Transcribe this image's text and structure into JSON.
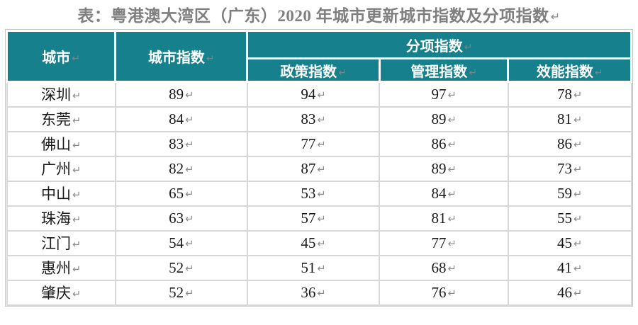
{
  "title": {
    "text": "表：粤港澳大湾区（广东）2020 年城市更新城市指数及分项指数"
  },
  "marks": {
    "crlf": "↵"
  },
  "colors": {
    "header_bg": "#16808C",
    "header_text": "#FFFFFF",
    "grid_line": "#D7D7D7",
    "outer_border": "#C6C6C6",
    "title_text": "#7F7F7F",
    "body_text": "#1A1A1A",
    "return_mark": "#8C8C8C"
  },
  "table": {
    "header": {
      "city": "城市",
      "city_index": "城市指数",
      "sub_index_group": "分项指数",
      "policy_index": "政策指数",
      "management_index": "管理指数",
      "efficiency_index": "效能指数"
    },
    "rows": [
      {
        "city": "深圳",
        "city_index": "89",
        "policy": "94",
        "management": "97",
        "efficiency": "78"
      },
      {
        "city": "东莞",
        "city_index": "84",
        "policy": "83",
        "management": "89",
        "efficiency": "81"
      },
      {
        "city": "佛山",
        "city_index": "83",
        "policy": "77",
        "management": "86",
        "efficiency": "86"
      },
      {
        "city": "广州",
        "city_index": "82",
        "policy": "87",
        "management": "89",
        "efficiency": "73"
      },
      {
        "city": "中山",
        "city_index": "65",
        "policy": "53",
        "management": "84",
        "efficiency": "59"
      },
      {
        "city": "珠海",
        "city_index": "63",
        "policy": "57",
        "management": "81",
        "efficiency": "55"
      },
      {
        "city": "江门",
        "city_index": "54",
        "policy": "45",
        "management": "77",
        "efficiency": "45"
      },
      {
        "city": "惠州",
        "city_index": "52",
        "policy": "51",
        "management": "68",
        "efficiency": "41"
      },
      {
        "city": "肇庆",
        "city_index": "52",
        "policy": "36",
        "management": "76",
        "efficiency": "46"
      }
    ]
  }
}
